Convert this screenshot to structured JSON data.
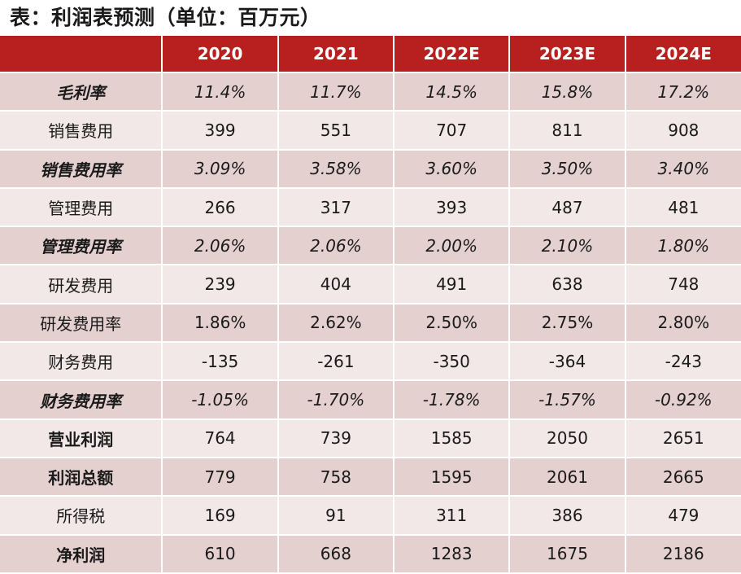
{
  "title": "表：利润表预测（单位：百万元）",
  "header": {
    "label": "",
    "years": [
      "2020",
      "2021",
      "2022E",
      "2023E",
      "2024E"
    ]
  },
  "rows": [
    {
      "label": "毛利率",
      "values": [
        "11.4%",
        "11.7%",
        "14.5%",
        "15.8%",
        "17.2%"
      ]
    },
    {
      "label": "销售费用",
      "values": [
        "399",
        "551",
        "707",
        "811",
        "908"
      ]
    },
    {
      "label": "销售费用率",
      "values": [
        "3.09%",
        "3.58%",
        "3.60%",
        "3.50%",
        "3.40%"
      ]
    },
    {
      "label": "管理费用",
      "values": [
        "266",
        "317",
        "393",
        "487",
        "481"
      ]
    },
    {
      "label": "管理费用率",
      "values": [
        "2.06%",
        "2.06%",
        "2.00%",
        "2.10%",
        "1.80%"
      ]
    },
    {
      "label": "研发费用",
      "values": [
        "239",
        "404",
        "491",
        "638",
        "748"
      ]
    },
    {
      "label": "研发费用率",
      "values": [
        "1.86%",
        "2.62%",
        "2.50%",
        "2.75%",
        "2.80%"
      ]
    },
    {
      "label": "财务费用",
      "values": [
        "-135",
        "-261",
        "-350",
        "-364",
        "-243"
      ]
    },
    {
      "label": "财务费用率",
      "values": [
        "-1.05%",
        "-1.70%",
        "-1.78%",
        "-1.57%",
        "-0.92%"
      ]
    },
    {
      "label": "营业利润",
      "values": [
        "764",
        "739",
        "1585",
        "2050",
        "2651"
      ]
    },
    {
      "label": "利润总额",
      "values": [
        "779",
        "758",
        "1595",
        "2061",
        "2665"
      ]
    },
    {
      "label": "所得税",
      "values": [
        "169",
        "91",
        "311",
        "386",
        "479"
      ]
    },
    {
      "label": "净利润",
      "values": [
        "610",
        "668",
        "1283",
        "1675",
        "2186"
      ]
    }
  ],
  "colors": {
    "header_bg": "#b7201f",
    "header_text": "#ffffff",
    "row_shade": "#e5d0d0",
    "row_light": "#f3e8e8"
  }
}
